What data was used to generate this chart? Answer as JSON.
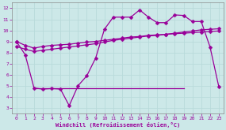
{
  "xlabel": "Windchill (Refroidissement éolien,°C)",
  "bg_color": "#cce8e8",
  "grid_color": "#b8dada",
  "line_color": "#990099",
  "xlim": [
    -0.5,
    23.5
  ],
  "ylim": [
    2.5,
    12.5
  ],
  "xticks": [
    0,
    1,
    2,
    3,
    4,
    5,
    6,
    7,
    8,
    9,
    10,
    11,
    12,
    13,
    14,
    15,
    16,
    17,
    18,
    19,
    20,
    21,
    22,
    23
  ],
  "yticks": [
    3,
    4,
    5,
    6,
    7,
    8,
    9,
    10,
    11,
    12
  ],
  "line1_x": [
    0,
    1,
    2,
    3,
    4,
    5,
    6,
    7,
    8,
    9,
    10,
    11,
    12,
    13,
    14,
    15,
    16,
    17,
    18,
    19,
    20,
    21,
    22,
    23
  ],
  "line1_y": [
    9.0,
    8.65,
    8.4,
    8.55,
    8.65,
    8.7,
    8.75,
    8.85,
    8.95,
    9.0,
    9.1,
    9.2,
    9.3,
    9.4,
    9.45,
    9.55,
    9.6,
    9.65,
    9.7,
    9.75,
    9.8,
    9.85,
    9.9,
    9.95
  ],
  "line2_x": [
    0,
    1,
    2,
    3,
    4,
    5,
    6,
    7,
    8,
    9,
    10,
    11,
    12,
    13,
    14,
    15,
    16,
    17,
    18,
    19,
    20,
    21,
    22,
    23
  ],
  "line2_y": [
    8.55,
    8.3,
    8.1,
    8.2,
    8.3,
    8.4,
    8.5,
    8.6,
    8.7,
    8.8,
    8.95,
    9.1,
    9.2,
    9.3,
    9.4,
    9.5,
    9.55,
    9.65,
    9.75,
    9.85,
    9.95,
    10.05,
    10.1,
    10.15
  ],
  "line3_x": [
    0,
    1,
    2,
    3,
    4,
    5,
    6,
    7,
    8,
    9,
    10,
    11,
    12,
    13,
    14,
    15,
    16,
    17,
    18,
    19,
    20,
    21,
    22,
    23
  ],
  "line3_y": [
    9.0,
    7.8,
    4.8,
    4.7,
    4.75,
    4.7,
    3.2,
    5.0,
    5.9,
    7.5,
    10.1,
    11.2,
    11.2,
    11.2,
    11.85,
    11.2,
    10.7,
    10.7,
    11.4,
    11.35,
    10.8,
    10.8,
    8.5,
    4.9
  ],
  "flat_line_x": [
    2,
    19
  ],
  "flat_line_y": [
    4.75,
    4.75
  ],
  "markersize": 2.5,
  "linewidth": 0.9
}
